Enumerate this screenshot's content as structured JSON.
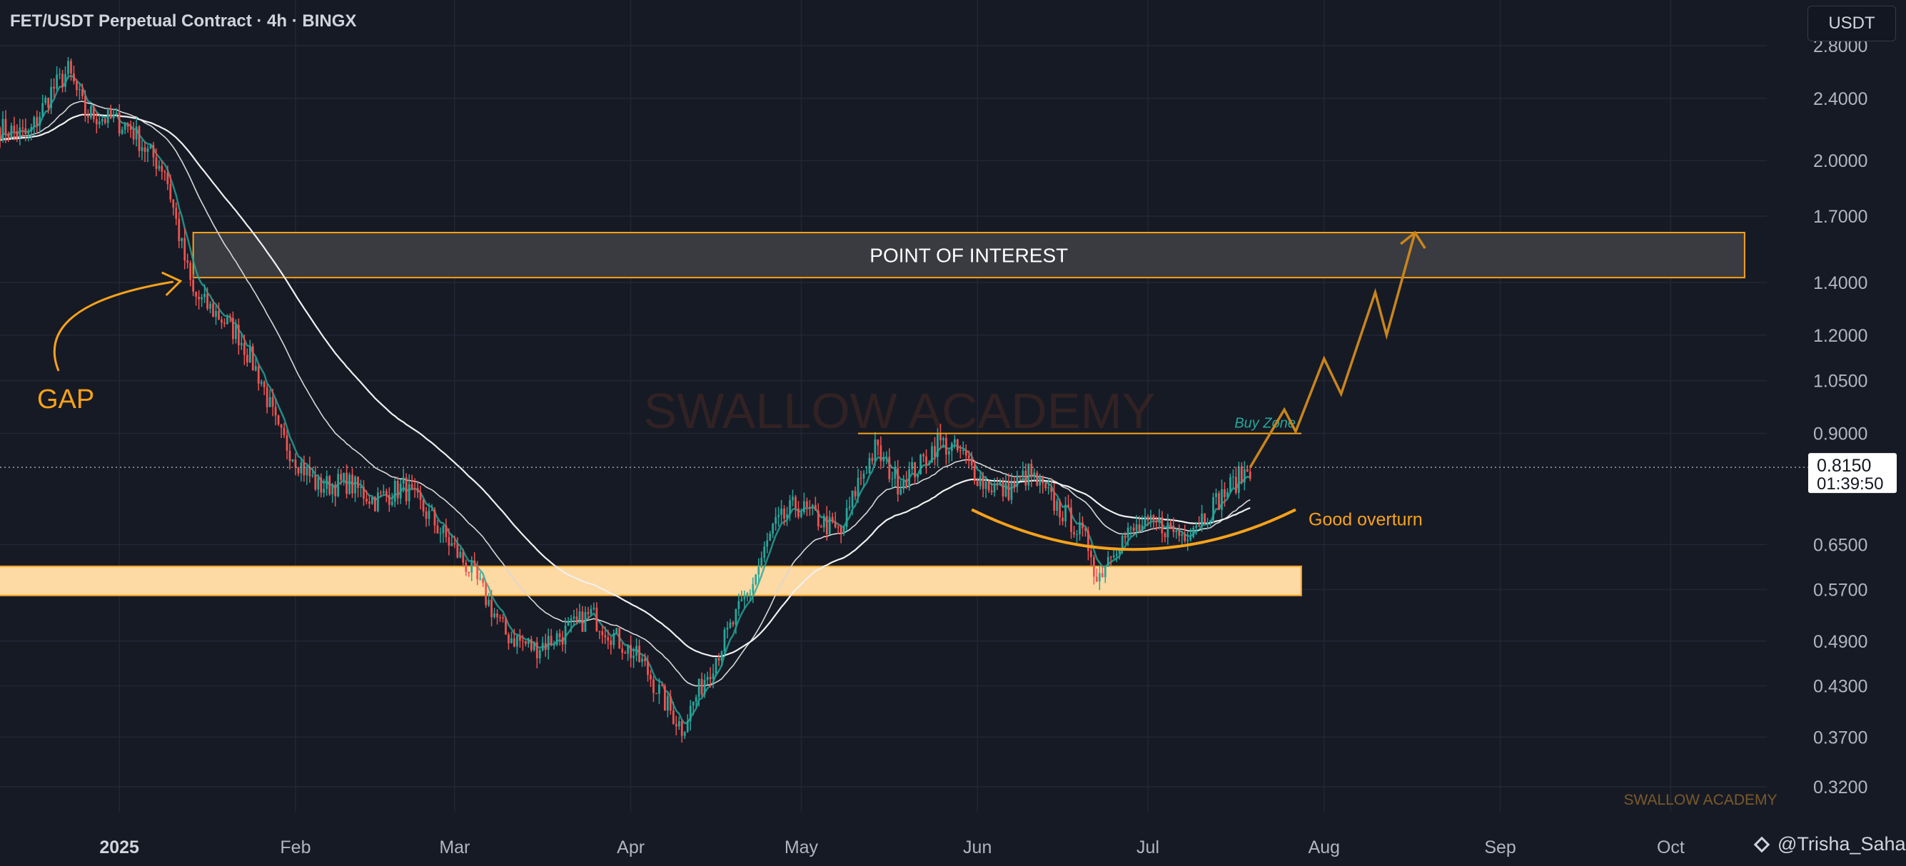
{
  "header": {
    "symbol_line": "FET/USDT Perpetual Contract · 4h · BINGX"
  },
  "unit_button": {
    "label": "USDT"
  },
  "author": {
    "handle": "@Trisha_Saha"
  },
  "colors": {
    "background": "#161a25",
    "grid": "#232735",
    "axis_text": "#b2b5be",
    "candle_up": "#26a69a",
    "candle_down": "#ef5350",
    "annotation_orange": "#f7a21b",
    "projection": "#c9851c",
    "ma_line": "#f0f0f0"
  },
  "chart_data": {
    "type": "candlestick",
    "title": "FET/USDT Perpetual Contract · 4h · BINGX",
    "yscale": "log",
    "ylim": [
      0.29,
      3.2
    ],
    "xlim": [
      "2024-12-11",
      "2025-10-31"
    ],
    "y_ticks": [
      "2.8000",
      "2.4000",
      "2.0000",
      "1.7000",
      "1.4000",
      "1.2000",
      "1.0500",
      "0.9000",
      "0.6500",
      "0.5700",
      "0.4900",
      "0.4300",
      "0.3700",
      "0.3200"
    ],
    "x_ticks": [
      {
        "date": "2025-01-01",
        "label": "2025",
        "bold": true
      },
      {
        "date": "2025-02-01",
        "label": "Feb"
      },
      {
        "date": "2025-03-01",
        "label": "Mar"
      },
      {
        "date": "2025-04-01",
        "label": "Apr"
      },
      {
        "date": "2025-05-01",
        "label": "May"
      },
      {
        "date": "2025-06-01",
        "label": "Jun"
      },
      {
        "date": "2025-07-01",
        "label": "Jul"
      },
      {
        "date": "2025-08-01",
        "label": "Aug"
      },
      {
        "date": "2025-09-01",
        "label": "Sep"
      },
      {
        "date": "2025-10-01",
        "label": "Oct"
      }
    ],
    "price_path": [
      [
        "2024-12-11",
        2.2
      ],
      [
        "2024-12-16",
        2.15
      ],
      [
        "2024-12-20",
        2.45
      ],
      [
        "2024-12-23",
        2.6
      ],
      [
        "2024-12-26",
        2.3
      ],
      [
        "2024-12-31",
        2.25
      ],
      [
        "2025-01-03",
        2.2
      ],
      [
        "2025-01-06",
        2.05
      ],
      [
        "2025-01-09",
        1.95
      ],
      [
        "2025-01-12",
        1.55
      ],
      [
        "2025-01-14",
        1.35
      ],
      [
        "2025-01-18",
        1.28
      ],
      [
        "2025-01-22",
        1.2
      ],
      [
        "2025-01-26",
        1.05
      ],
      [
        "2025-01-29",
        0.9
      ],
      [
        "2025-02-02",
        0.82
      ],
      [
        "2025-02-05",
        0.77
      ],
      [
        "2025-02-10",
        0.78
      ],
      [
        "2025-02-15",
        0.74
      ],
      [
        "2025-02-20",
        0.77
      ],
      [
        "2025-02-25",
        0.7
      ],
      [
        "2025-03-01",
        0.64
      ],
      [
        "2025-03-04",
        0.6
      ],
      [
        "2025-03-10",
        0.5
      ],
      [
        "2025-03-15",
        0.48
      ],
      [
        "2025-03-20",
        0.5
      ],
      [
        "2025-03-25",
        0.53
      ],
      [
        "2025-03-30",
        0.49
      ],
      [
        "2025-04-03",
        0.46
      ],
      [
        "2025-04-07",
        0.41
      ],
      [
        "2025-04-10",
        0.38
      ],
      [
        "2025-04-14",
        0.44
      ],
      [
        "2025-04-18",
        0.5
      ],
      [
        "2025-04-22",
        0.57
      ],
      [
        "2025-04-26",
        0.68
      ],
      [
        "2025-04-30",
        0.73
      ],
      [
        "2025-05-04",
        0.7
      ],
      [
        "2025-05-08",
        0.67
      ],
      [
        "2025-05-11",
        0.78
      ],
      [
        "2025-05-14",
        0.86
      ],
      [
        "2025-05-18",
        0.78
      ],
      [
        "2025-05-22",
        0.82
      ],
      [
        "2025-05-25",
        0.88
      ],
      [
        "2025-05-29",
        0.85
      ],
      [
        "2025-06-02",
        0.78
      ],
      [
        "2025-06-06",
        0.76
      ],
      [
        "2025-06-10",
        0.8
      ],
      [
        "2025-06-14",
        0.74
      ],
      [
        "2025-06-18",
        0.69
      ],
      [
        "2025-06-21",
        0.64
      ],
      [
        "2025-06-22",
        0.585
      ],
      [
        "2025-06-25",
        0.65
      ],
      [
        "2025-06-29",
        0.68
      ],
      [
        "2025-07-03",
        0.69
      ],
      [
        "2025-07-07",
        0.67
      ],
      [
        "2025-07-11",
        0.71
      ],
      [
        "2025-07-14",
        0.75
      ],
      [
        "2025-07-17",
        0.79
      ],
      [
        "2025-07-19",
        0.815
      ]
    ],
    "lines": [
      {
        "name": "current-price",
        "value": 0.815,
        "label": "0.8150",
        "countdown": "01:39:50"
      }
    ],
    "zones": [
      {
        "name": "point-of-interest",
        "label": "POINT OF INTEREST",
        "from": 1.42,
        "to": 1.62,
        "x_start": "2025-01-14",
        "x_end": "2025-10-14"
      },
      {
        "name": "demand-zone",
        "label": "",
        "from": 0.56,
        "to": 0.61,
        "x_start": "2024-12-11",
        "x_end": "2025-07-28"
      }
    ],
    "annotations": [
      {
        "name": "gap-label",
        "text": "GAP"
      },
      {
        "name": "buy-zone-label",
        "text": "Buy Zone",
        "level": 0.9,
        "x_start": "2025-05-11",
        "x_end": "2025-07-28"
      },
      {
        "name": "good-overturn-label",
        "text": "Good overturn"
      }
    ],
    "projection_path": [
      [
        "2025-07-19",
        0.815
      ],
      [
        "2025-07-25",
        0.965
      ],
      [
        "2025-07-27",
        0.905
      ],
      [
        "2025-08-01",
        1.12
      ],
      [
        "2025-08-04",
        1.01
      ],
      [
        "2025-08-10",
        1.36
      ],
      [
        "2025-08-12",
        1.2
      ],
      [
        "2025-08-17",
        1.62
      ]
    ],
    "watermarks": [
      "SWALLOW ACADEMY",
      "SWALLOW ACADEMY"
    ]
  }
}
